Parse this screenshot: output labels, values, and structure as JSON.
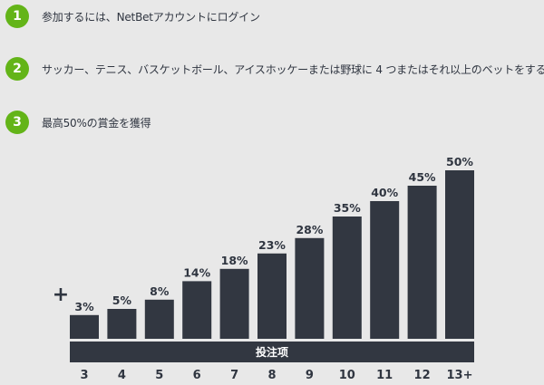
{
  "colors": {
    "background": "#e8e8e8",
    "accent": "#63b418",
    "bar": "#323741",
    "text": "#2f3540"
  },
  "steps": [
    {
      "number": "1",
      "text": "参加するには、NetBetアカウントにログイン"
    },
    {
      "number": "2",
      "text": "サッカー、テニス、バスケットボール、アイスホッケーまたは野球に 4 つまたはそれ以上のベットをする"
    },
    {
      "number": "3",
      "text": "最高50%の賞金を獲得"
    }
  ],
  "chart_data": {
    "type": "bar",
    "categories": [
      "3",
      "4",
      "5",
      "6",
      "7",
      "8",
      "9",
      "10",
      "11",
      "12",
      "13+"
    ],
    "values": [
      3,
      5,
      8,
      14,
      18,
      23,
      28,
      35,
      40,
      45,
      50
    ],
    "value_labels": [
      "3%",
      "5%",
      "8%",
      "14%",
      "18%",
      "23%",
      "28%",
      "35%",
      "40%",
      "45%",
      "50%"
    ],
    "xlabel": "投注项",
    "prefix_symbol": "+",
    "ylim": [
      0,
      50
    ]
  }
}
